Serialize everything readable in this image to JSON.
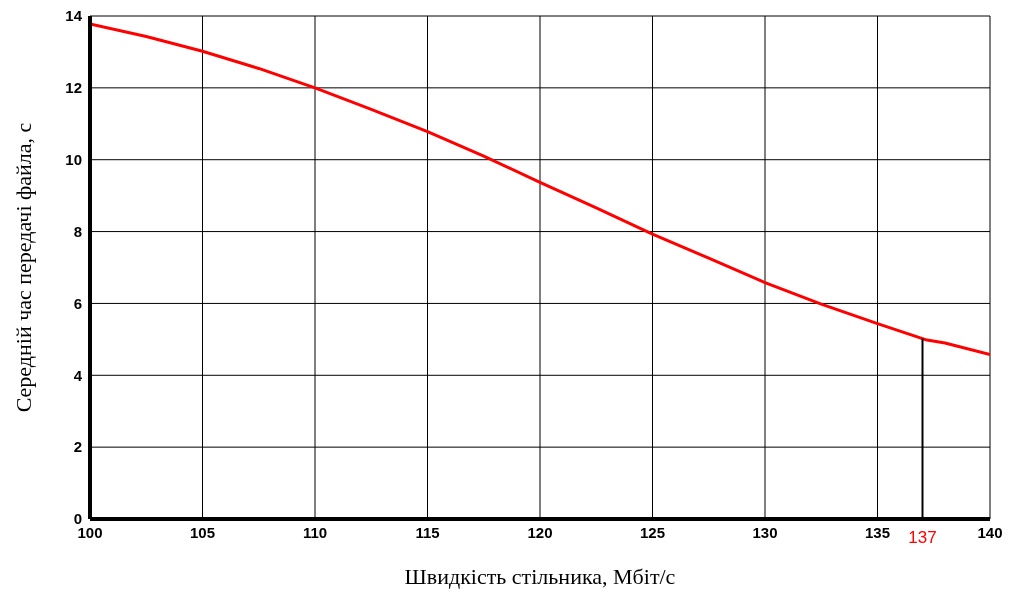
{
  "chart_data": {
    "type": "line",
    "xlabel": "Швидкість стільника, Мбіт/с",
    "ylabel": "Середній час передачі файла, с",
    "xlim": [
      100,
      140
    ],
    "xticks": [
      100,
      105,
      110,
      115,
      120,
      125,
      130,
      135,
      140
    ],
    "ylim": [
      0,
      14
    ],
    "yticks": [
      0,
      2,
      4,
      6,
      8,
      10,
      12,
      14
    ],
    "grid": true,
    "marker": "none",
    "line_style": "solid",
    "series": [
      {
        "color": "#ff0000",
        "x": [
          100,
          102.5,
          105,
          107.5,
          110,
          112.5,
          115,
          117.5,
          120,
          122.5,
          125,
          127.5,
          130,
          132.5,
          135,
          136.8,
          137.2,
          138,
          140
        ],
        "values": [
          13.78,
          13.43,
          13.02,
          12.54,
          12.0,
          11.4,
          10.78,
          10.1,
          9.37,
          8.66,
          7.93,
          7.26,
          6.58,
          5.98,
          5.44,
          5.06,
          4.98,
          4.9,
          4.58
        ]
      }
    ],
    "ref_lines": [
      {
        "axis": "x",
        "value": 137,
        "label": "137",
        "color": "#000000"
      }
    ]
  }
}
